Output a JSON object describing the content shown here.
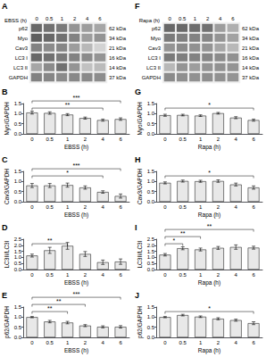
{
  "chart_data": [
    {
      "type": "heatmap",
      "title": "A",
      "xlabel": "EBSS (h)",
      "categories": [
        "0",
        "0.5",
        "1",
        "2",
        "4",
        "6"
      ],
      "y_categories": [
        "p62",
        "Myo",
        "Cav3",
        "LC3 I",
        "LC3 II",
        "GAPDH"
      ],
      "y2_categories": [
        "62 kDa",
        "34 kDa",
        "21 kDa",
        "16 kDa",
        "14 kDa",
        "37 kDa"
      ],
      "cells": [
        [
          0.85,
          0.8,
          0.75,
          0.6,
          0.55,
          0.5
        ],
        [
          0.9,
          0.85,
          0.8,
          0.7,
          0.55,
          0.6
        ],
        [
          0.7,
          0.65,
          0.68,
          0.55,
          0.4,
          0.25
        ],
        [
          0.85,
          0.8,
          0.75,
          0.7,
          0.65,
          0.6
        ],
        [
          0.5,
          0.65,
          0.8,
          0.6,
          0.35,
          0.38
        ],
        [
          0.7,
          0.68,
          0.65,
          0.67,
          0.66,
          0.64
        ]
      ],
      "clim": [
        0,
        1
      ]
    },
    {
      "type": "heatmap",
      "title": "F",
      "xlabel": "Rapa (h)",
      "categories": [
        "0",
        "0.5",
        "1",
        "2",
        "4",
        "6"
      ],
      "y_categories": [
        "p62",
        "Myo",
        "Cav3",
        "LC3 I",
        "LC3 II",
        "GAPDH"
      ],
      "y2_categories": [
        "62 kDa",
        "34 kDa",
        "21 kDa",
        "16 kDa",
        "14 kDa",
        "37 kDa"
      ],
      "cells": [
        [
          0.85,
          0.85,
          0.82,
          0.8,
          0.55,
          0.45
        ],
        [
          0.75,
          0.72,
          0.7,
          0.68,
          0.6,
          0.52
        ],
        [
          0.6,
          0.65,
          0.62,
          0.6,
          0.5,
          0.4
        ],
        [
          0.75,
          0.72,
          0.7,
          0.68,
          0.65,
          0.62
        ],
        [
          0.4,
          0.6,
          0.55,
          0.6,
          0.62,
          0.6
        ],
        [
          0.65,
          0.63,
          0.62,
          0.63,
          0.62,
          0.6
        ]
      ],
      "clim": [
        0,
        1
      ]
    },
    {
      "type": "bar",
      "title": "B",
      "categories": [
        "0",
        "0.5",
        "1",
        "2",
        "4",
        "6"
      ],
      "values": [
        1.05,
        1.03,
        0.95,
        0.78,
        0.68,
        0.73
      ],
      "errors": [
        0.07,
        0.06,
        0.05,
        0.05,
        0.05,
        0.06
      ],
      "color": "#e8e8e8",
      "xlabel": "EBSS (h)",
      "ylabel": "Myo/GAPDH",
      "ylim": [
        0.0,
        1.5
      ],
      "yticks": [
        {
          "value": 0.0,
          "label": "0.0"
        },
        0.5,
        {
          "value": 1.0,
          "label": "1.0"
        },
        1.5
      ],
      "grid": false,
      "annotations": [
        {
          "from": "0",
          "to": "4",
          "text": "**"
        },
        {
          "from": "0",
          "to": "6",
          "text": "***"
        }
      ]
    },
    {
      "type": "bar",
      "title": "C",
      "categories": [
        "0",
        "0.5",
        "1",
        "2",
        "4",
        "6"
      ],
      "values": [
        0.8,
        0.8,
        0.82,
        0.7,
        0.48,
        0.28
      ],
      "errors": [
        0.1,
        0.1,
        0.1,
        0.08,
        0.06,
        0.1
      ],
      "color": "#e8e8e8",
      "xlabel": "EBSS (h)",
      "ylabel": "Cav3/GAPDH",
      "ylim": [
        0.0,
        1.5
      ],
      "yticks": [
        {
          "value": 0.0,
          "label": "0.0"
        },
        0.5,
        {
          "value": 1.0,
          "label": "1.0"
        },
        1.5
      ],
      "grid": false,
      "annotations": [
        {
          "from": "0",
          "to": "4",
          "text": "*"
        },
        {
          "from": "0",
          "to": "6",
          "text": "***"
        }
      ]
    },
    {
      "type": "bar",
      "title": "D",
      "categories": [
        "0",
        "0.5",
        "1",
        "2",
        "4",
        "6"
      ],
      "values": [
        1.15,
        1.58,
        1.95,
        1.28,
        0.6,
        0.65
      ],
      "errors": [
        0.12,
        0.25,
        0.28,
        0.2,
        0.18,
        0.22
      ],
      "color": "#e8e8e8",
      "xlabel": "EBSS (h)",
      "ylabel": "LC3II/LC3I",
      "ylim": [
        0.0,
        2.5
      ],
      "yticks": [
        {
          "value": 0.0,
          "label": "0.0"
        },
        0.5,
        {
          "value": 1.0,
          "label": "1.0"
        },
        1.5,
        {
          "value": 2.0,
          "label": "2.0"
        },
        2.5
      ],
      "grid": false,
      "annotations": [
        {
          "from": "0",
          "to": "1",
          "text": "**"
        }
      ]
    },
    {
      "type": "bar",
      "title": "E",
      "categories": [
        "0",
        "0.5",
        "1",
        "2",
        "4",
        "6"
      ],
      "values": [
        1.0,
        0.78,
        0.73,
        0.58,
        0.52,
        0.52
      ],
      "errors": [
        0.03,
        0.06,
        0.06,
        0.05,
        0.05,
        0.06
      ],
      "color": "#e8e8e8",
      "xlabel": "EBSS (h)",
      "ylabel": "p62/GAPDH",
      "ylim": [
        0.0,
        1.5
      ],
      "yticks": [
        {
          "value": 0.0,
          "label": "0.0"
        },
        0.5,
        {
          "value": 1.0,
          "label": "1.0"
        },
        1.5
      ],
      "grid": false,
      "annotations": [
        {
          "from": "0",
          "to": "1",
          "text": "**"
        },
        {
          "from": "0",
          "to": "2",
          "text": "**"
        },
        {
          "from": "0",
          "to": "6",
          "text": "***"
        }
      ]
    },
    {
      "type": "bar",
      "title": "G",
      "categories": [
        "0",
        "0.5",
        "1",
        "2",
        "4",
        "6"
      ],
      "values": [
        0.92,
        0.93,
        0.9,
        1.02,
        0.8,
        0.68
      ],
      "errors": [
        0.05,
        0.04,
        0.04,
        0.04,
        0.05,
        0.05
      ],
      "color": "#e8e8e8",
      "xlabel": "Rapa (h)",
      "ylabel": "Myo/GAPDH",
      "ylim": [
        0.0,
        1.5
      ],
      "yticks": [
        {
          "value": 0.0,
          "label": "0.0"
        },
        0.5,
        {
          "value": 1.0,
          "label": "1.0"
        },
        1.5
      ],
      "grid": false,
      "annotations": [
        {
          "from": "0",
          "to": "6",
          "text": "*"
        }
      ]
    },
    {
      "type": "bar",
      "title": "H",
      "categories": [
        "0",
        "0.5",
        "1",
        "2",
        "4",
        "6"
      ],
      "values": [
        0.93,
        1.02,
        1.01,
        1.02,
        0.85,
        0.7
      ],
      "errors": [
        0.05,
        0.05,
        0.05,
        0.06,
        0.07,
        0.08
      ],
      "color": "#e8e8e8",
      "xlabel": "Rapa (h)",
      "ylabel": "Cav3/GAPDH",
      "ylim": [
        0.0,
        1.5
      ],
      "yticks": [
        {
          "value": 0.0,
          "label": "0.0"
        },
        0.5,
        {
          "value": 1.0,
          "label": "1.0"
        },
        1.5
      ],
      "grid": false,
      "annotations": [
        {
          "from": "0",
          "to": "6",
          "text": "*"
        }
      ]
    },
    {
      "type": "bar",
      "title": "I",
      "categories": [
        "0",
        "0.5",
        "1",
        "2",
        "4",
        "6"
      ],
      "values": [
        1.22,
        1.75,
        1.65,
        1.78,
        1.85,
        1.8
      ],
      "errors": [
        0.1,
        0.12,
        0.12,
        0.12,
        0.18,
        0.12
      ],
      "color": "#e8e8e8",
      "xlabel": "Rapa (h)",
      "ylabel": "LC3II/LC3I",
      "ylim": [
        0.0,
        2.5
      ],
      "yticks": [
        {
          "value": 0.0,
          "label": "0.0"
        },
        0.5,
        {
          "value": 1.0,
          "label": "1.0"
        },
        1.5,
        {
          "value": 2.0,
          "label": "2.0"
        },
        2.5
      ],
      "grid": false,
      "annotations": [
        {
          "from": "0",
          "to": "0.5",
          "text": "*"
        },
        {
          "from": "0",
          "to": "1",
          "text": "**"
        },
        {
          "from": "0",
          "to": "6",
          "text": "**"
        }
      ]
    },
    {
      "type": "bar",
      "title": "J",
      "categories": [
        "0",
        "0.5",
        "1",
        "2",
        "4",
        "6"
      ],
      "values": [
        1.0,
        1.1,
        1.02,
        0.92,
        0.85,
        0.7
      ],
      "errors": [
        0.03,
        0.04,
        0.04,
        0.05,
        0.05,
        0.07
      ],
      "color": "#e8e8e8",
      "xlabel": "Rapa (h)",
      "ylabel": "p62/GAPDH",
      "ylim": [
        0.0,
        1.5
      ],
      "yticks": [
        {
          "value": 0.0,
          "label": "0.0"
        },
        0.5,
        {
          "value": 1.0,
          "label": "1.0"
        },
        1.5
      ],
      "grid": false,
      "annotations": [
        {
          "from": "0",
          "to": "6",
          "text": "*"
        }
      ]
    }
  ]
}
